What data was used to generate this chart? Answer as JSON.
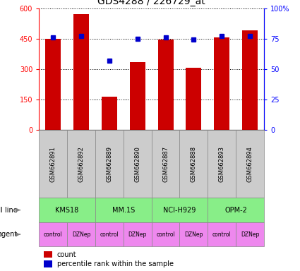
{
  "title": "GDS4288 / 226729_at",
  "samples": [
    "GSM662891",
    "GSM662892",
    "GSM662889",
    "GSM662890",
    "GSM662887",
    "GSM662888",
    "GSM662893",
    "GSM662894"
  ],
  "counts": [
    450,
    570,
    165,
    335,
    445,
    305,
    455,
    490
  ],
  "percentile_ranks": [
    76,
    77,
    57,
    75,
    76,
    74,
    77,
    77
  ],
  "cell_lines": [
    {
      "label": "KMS18",
      "span": [
        0,
        2
      ]
    },
    {
      "label": "MM.1S",
      "span": [
        2,
        4
      ]
    },
    {
      "label": "NCI-H929",
      "span": [
        4,
        6
      ]
    },
    {
      "label": "OPM-2",
      "span": [
        6,
        8
      ]
    }
  ],
  "agents": [
    "control",
    "DZNep",
    "control",
    "DZNep",
    "control",
    "DZNep",
    "control",
    "DZNep"
  ],
  "bar_color": "#cc0000",
  "dot_color": "#0000cc",
  "cell_line_color": "#88ee88",
  "agent_color": "#ee88ee",
  "gsm_bg_color": "#cccccc",
  "ylim_left": [
    0,
    600
  ],
  "ylim_right": [
    0,
    100
  ],
  "yticks_left": [
    0,
    150,
    300,
    450,
    600
  ],
  "yticks_right": [
    0,
    25,
    50,
    75,
    100
  ],
  "ytick_labels_left": [
    "0",
    "150",
    "300",
    "450",
    "600"
  ],
  "ytick_labels_right": [
    "0",
    "25",
    "50",
    "75",
    "100%"
  ]
}
